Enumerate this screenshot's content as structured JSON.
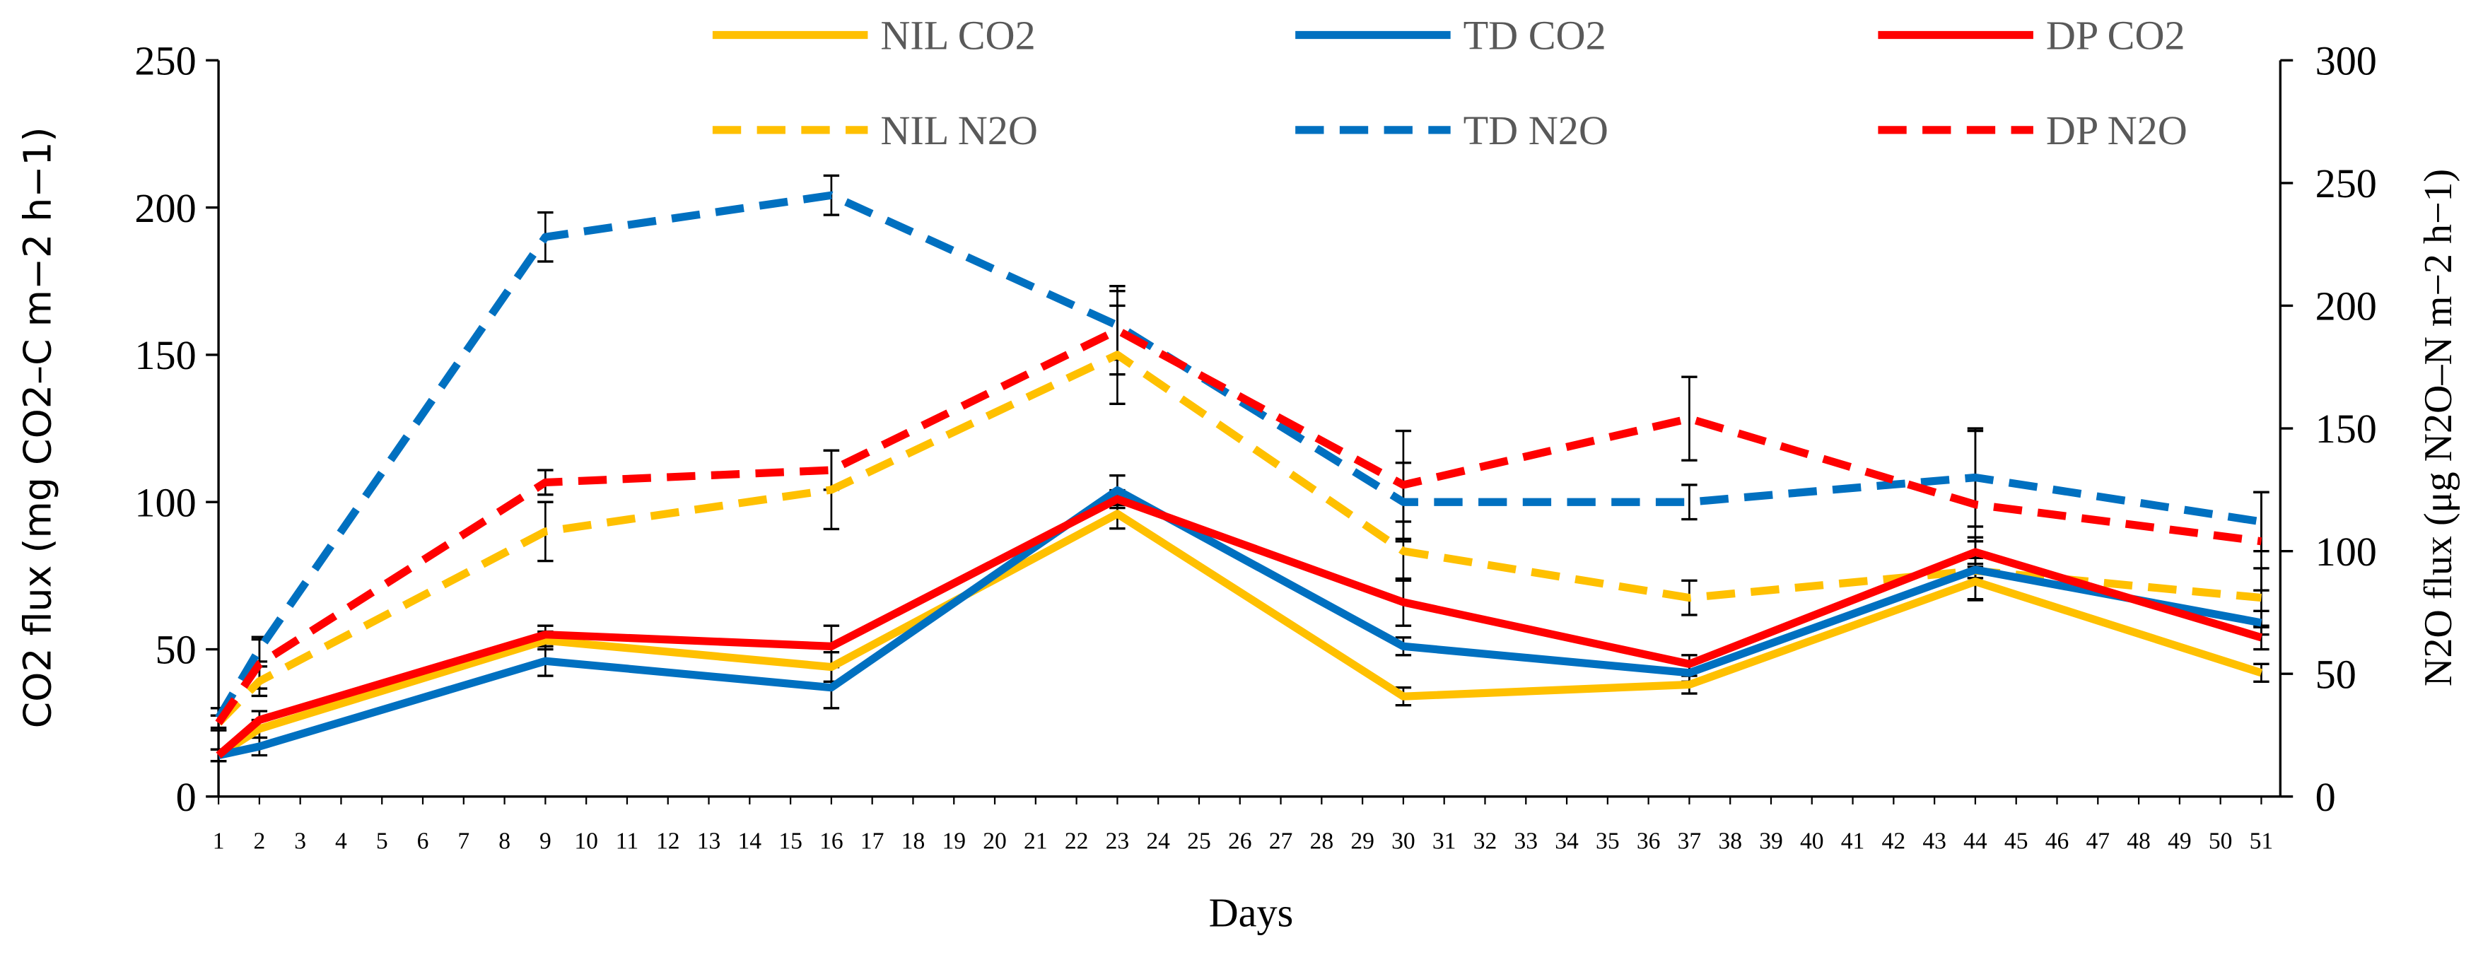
{
  "chart_data": {
    "type": "line",
    "xlabel": "Days",
    "ylabel_left": "CO2 flux (mg CO2–C m−2 h−1)",
    "ylabel_right": "N2O flux (μg N2O–N m−2 h−1)",
    "x_ticks": [
      1,
      2,
      3,
      4,
      5,
      6,
      7,
      8,
      9,
      10,
      11,
      12,
      13,
      14,
      15,
      16,
      17,
      18,
      19,
      20,
      21,
      22,
      23,
      24,
      25,
      26,
      27,
      28,
      29,
      30,
      31,
      32,
      33,
      34,
      35,
      36,
      37,
      38,
      39,
      40,
      41,
      42,
      43,
      44,
      45,
      46,
      47,
      48,
      49,
      50,
      51
    ],
    "ylim_left": [
      0,
      250
    ],
    "ylim_right": [
      0,
      300
    ],
    "y_ticks_left": [
      0,
      50,
      100,
      150,
      200,
      250
    ],
    "y_ticks_right": [
      0,
      50,
      100,
      150,
      200,
      250,
      300
    ],
    "grid": false,
    "legend_position": "top",
    "x": [
      1,
      2,
      9,
      16,
      23,
      30,
      37,
      44,
      51
    ],
    "series": [
      {
        "name": "NIL CO2",
        "axis": "left",
        "color": "#FFC000",
        "dash": false,
        "values": [
          14,
          23,
          53,
          44,
          96,
          34,
          38,
          73,
          42
        ],
        "errors": [
          2,
          3,
          3,
          5,
          5,
          3,
          3,
          6,
          3
        ]
      },
      {
        "name": "TD CO2",
        "axis": "left",
        "color": "#0070C0",
        "dash": false,
        "values": [
          14,
          17,
          46,
          37,
          104,
          51,
          42,
          77,
          59
        ],
        "errors": [
          2,
          3,
          5,
          7,
          5,
          3,
          3,
          4,
          4
        ]
      },
      {
        "name": "DP CO2",
        "axis": "left",
        "color": "#FF0000",
        "dash": false,
        "values": [
          14,
          26,
          55,
          51,
          101,
          66,
          45,
          83,
          54
        ],
        "errors": [
          2,
          3,
          3,
          7,
          3,
          8,
          3,
          5,
          4
        ]
      },
      {
        "name": "NIL N2O",
        "axis": "right",
        "color": "#FFC000",
        "dash": true,
        "values": [
          30,
          47,
          108,
          125,
          180,
          100,
          81,
          92,
          81
        ],
        "errors": [
          3,
          6,
          12,
          16,
          20,
          12,
          7,
          12,
          12
        ]
      },
      {
        "name": "TD N2O",
        "axis": "right",
        "color": "#0070C0",
        "dash": true,
        "values": [
          32,
          60,
          228,
          245,
          192,
          120,
          120,
          130,
          112
        ],
        "errors": [
          4,
          5,
          10,
          8,
          14,
          16,
          7,
          20,
          12
        ]
      },
      {
        "name": "DP N2O",
        "axis": "right",
        "color": "#FF0000",
        "dash": true,
        "values": [
          30,
          54,
          128,
          133,
          190,
          127,
          154,
          119,
          104
        ],
        "errors": [
          3,
          10,
          5,
          8,
          18,
          22,
          17,
          30,
          20
        ]
      }
    ]
  }
}
